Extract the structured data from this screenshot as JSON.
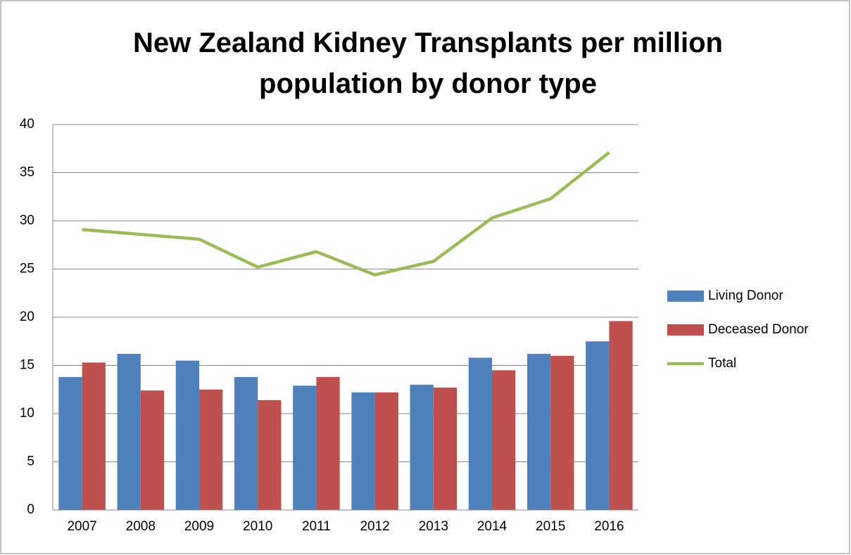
{
  "chart_data": {
    "type": "bar",
    "title": "New Zealand Kidney Transplants per million population by donor type",
    "categories": [
      "2007",
      "2008",
      "2009",
      "2010",
      "2011",
      "2012",
      "2013",
      "2014",
      "2015",
      "2016"
    ],
    "series": [
      {
        "name": "Living Donor",
        "type": "bar",
        "color": "#4f81bd",
        "values": [
          13.8,
          16.2,
          15.5,
          13.8,
          12.9,
          12.2,
          13.0,
          15.8,
          16.2,
          17.5
        ]
      },
      {
        "name": "Deceased Donor",
        "type": "bar",
        "color": "#c0504d",
        "values": [
          15.3,
          12.4,
          12.5,
          11.4,
          13.8,
          12.2,
          12.7,
          14.5,
          16.0,
          19.6
        ]
      },
      {
        "name": "Total",
        "type": "line",
        "color": "#9bbb59",
        "values": [
          29.1,
          28.6,
          28.1,
          25.2,
          26.8,
          24.4,
          25.8,
          30.3,
          32.3,
          37.1
        ]
      }
    ],
    "ylim": [
      0,
      40
    ],
    "yticks": [
      0,
      5,
      10,
      15,
      20,
      25,
      30,
      35,
      40
    ],
    "grid": true,
    "legend": "right"
  }
}
